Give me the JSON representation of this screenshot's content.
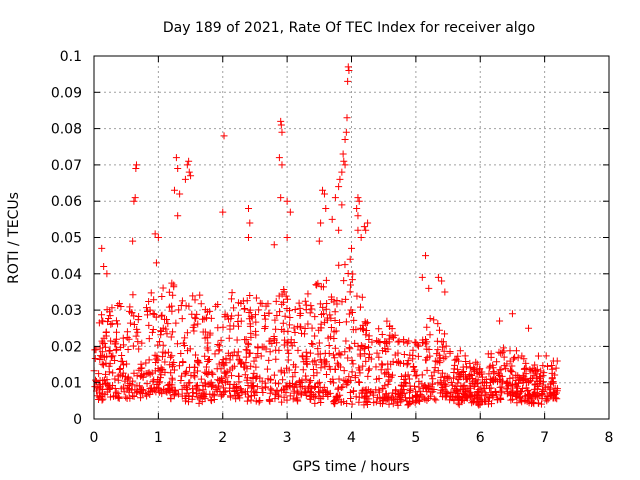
{
  "chart_data": {
    "type": "scatter",
    "title": "Day 189 of 2021, Rate Of TEC Index for receiver algo",
    "xlabel": "GPS time / hours",
    "ylabel": "ROTI / TECUs",
    "xlim": [
      0,
      8
    ],
    "ylim": [
      0,
      0.1
    ],
    "grid": true,
    "marker": "+",
    "color": "#ff0000",
    "x_ticks": [
      "0",
      "1",
      "2",
      "3",
      "4",
      "5",
      "6",
      "7",
      "8"
    ],
    "x_tick_values": [
      0,
      1,
      2,
      3,
      4,
      5,
      6,
      7,
      8
    ],
    "y_ticks": [
      "0",
      "0.01",
      "0.02",
      "0.03",
      "0.04",
      "0.05",
      "0.06",
      "0.07",
      "0.08",
      "0.09",
      "0.1"
    ],
    "y_tick_values": [
      0,
      0.01,
      0.02,
      0.03,
      0.04,
      0.05,
      0.06,
      0.07,
      0.08,
      0.09,
      0.1
    ],
    "data_extent_hours": [
      0,
      7.2
    ],
    "envelope": [
      {
        "t": 0.0,
        "base": 0.006,
        "peak": 0.027
      },
      {
        "t": 0.3,
        "base": 0.007,
        "peak": 0.032
      },
      {
        "t": 0.6,
        "base": 0.006,
        "peak": 0.035
      },
      {
        "t": 1.0,
        "base": 0.007,
        "peak": 0.036
      },
      {
        "t": 1.3,
        "base": 0.006,
        "peak": 0.038
      },
      {
        "t": 1.7,
        "base": 0.005,
        "peak": 0.033
      },
      {
        "t": 2.0,
        "base": 0.006,
        "peak": 0.034
      },
      {
        "t": 2.4,
        "base": 0.006,
        "peak": 0.033
      },
      {
        "t": 2.9,
        "base": 0.006,
        "peak": 0.036
      },
      {
        "t": 3.2,
        "base": 0.006,
        "peak": 0.034
      },
      {
        "t": 3.6,
        "base": 0.005,
        "peak": 0.04
      },
      {
        "t": 3.9,
        "base": 0.005,
        "peak": 0.045
      },
      {
        "t": 4.3,
        "base": 0.005,
        "peak": 0.032
      },
      {
        "t": 4.7,
        "base": 0.005,
        "peak": 0.024
      },
      {
        "t": 5.0,
        "base": 0.005,
        "peak": 0.022
      },
      {
        "t": 5.3,
        "base": 0.006,
        "peak": 0.03
      },
      {
        "t": 5.7,
        "base": 0.005,
        "peak": 0.018
      },
      {
        "t": 6.0,
        "base": 0.005,
        "peak": 0.014
      },
      {
        "t": 6.4,
        "base": 0.006,
        "peak": 0.022
      },
      {
        "t": 6.8,
        "base": 0.005,
        "peak": 0.016
      },
      {
        "t": 7.2,
        "base": 0.006,
        "peak": 0.016
      }
    ],
    "outliers": [
      {
        "x": 0.12,
        "y": 0.047
      },
      {
        "x": 0.15,
        "y": 0.042
      },
      {
        "x": 0.2,
        "y": 0.04
      },
      {
        "x": 0.6,
        "y": 0.049
      },
      {
        "x": 0.62,
        "y": 0.06
      },
      {
        "x": 0.64,
        "y": 0.061
      },
      {
        "x": 0.65,
        "y": 0.069
      },
      {
        "x": 0.66,
        "y": 0.07
      },
      {
        "x": 0.95,
        "y": 0.051
      },
      {
        "x": 1.0,
        "y": 0.05
      },
      {
        "x": 0.97,
        "y": 0.043
      },
      {
        "x": 1.25,
        "y": 0.063
      },
      {
        "x": 1.28,
        "y": 0.072
      },
      {
        "x": 1.3,
        "y": 0.069
      },
      {
        "x": 1.3,
        "y": 0.056
      },
      {
        "x": 1.33,
        "y": 0.062
      },
      {
        "x": 1.45,
        "y": 0.07
      },
      {
        "x": 1.47,
        "y": 0.071
      },
      {
        "x": 1.5,
        "y": 0.067
      },
      {
        "x": 1.48,
        "y": 0.068
      },
      {
        "x": 1.42,
        "y": 0.066
      },
      {
        "x": 2.02,
        "y": 0.078
      },
      {
        "x": 2.0,
        "y": 0.057
      },
      {
        "x": 2.4,
        "y": 0.058
      },
      {
        "x": 2.42,
        "y": 0.054
      },
      {
        "x": 2.4,
        "y": 0.05
      },
      {
        "x": 2.9,
        "y": 0.082
      },
      {
        "x": 2.91,
        "y": 0.081
      },
      {
        "x": 2.92,
        "y": 0.079
      },
      {
        "x": 2.88,
        "y": 0.072
      },
      {
        "x": 2.92,
        "y": 0.07
      },
      {
        "x": 2.9,
        "y": 0.061
      },
      {
        "x": 3.0,
        "y": 0.06
      },
      {
        "x": 3.05,
        "y": 0.057
      },
      {
        "x": 3.0,
        "y": 0.05
      },
      {
        "x": 2.8,
        "y": 0.048
      },
      {
        "x": 3.55,
        "y": 0.063
      },
      {
        "x": 3.58,
        "y": 0.062
      },
      {
        "x": 3.6,
        "y": 0.058
      },
      {
        "x": 3.52,
        "y": 0.054
      },
      {
        "x": 3.5,
        "y": 0.049
      },
      {
        "x": 3.7,
        "y": 0.055
      },
      {
        "x": 3.75,
        "y": 0.061
      },
      {
        "x": 3.8,
        "y": 0.064
      },
      {
        "x": 3.82,
        "y": 0.066
      },
      {
        "x": 3.85,
        "y": 0.068
      },
      {
        "x": 3.87,
        "y": 0.073
      },
      {
        "x": 3.88,
        "y": 0.071
      },
      {
        "x": 3.9,
        "y": 0.07
      },
      {
        "x": 3.9,
        "y": 0.077
      },
      {
        "x": 3.92,
        "y": 0.079
      },
      {
        "x": 3.93,
        "y": 0.083
      },
      {
        "x": 3.94,
        "y": 0.093
      },
      {
        "x": 3.95,
        "y": 0.097
      },
      {
        "x": 3.96,
        "y": 0.096
      },
      {
        "x": 3.85,
        "y": 0.059
      },
      {
        "x": 3.8,
        "y": 0.052
      },
      {
        "x": 4.1,
        "y": 0.061
      },
      {
        "x": 4.12,
        "y": 0.06
      },
      {
        "x": 4.1,
        "y": 0.056
      },
      {
        "x": 4.08,
        "y": 0.058
      },
      {
        "x": 4.1,
        "y": 0.052
      },
      {
        "x": 4.15,
        "y": 0.05
      },
      {
        "x": 4.2,
        "y": 0.053
      },
      {
        "x": 4.25,
        "y": 0.054
      },
      {
        "x": 4.22,
        "y": 0.052
      },
      {
        "x": 4.0,
        "y": 0.047
      },
      {
        "x": 3.98,
        "y": 0.044
      },
      {
        "x": 5.15,
        "y": 0.045
      },
      {
        "x": 5.1,
        "y": 0.039
      },
      {
        "x": 5.2,
        "y": 0.036
      },
      {
        "x": 5.35,
        "y": 0.039
      },
      {
        "x": 5.4,
        "y": 0.038
      },
      {
        "x": 5.45,
        "y": 0.035
      },
      {
        "x": 6.3,
        "y": 0.027
      },
      {
        "x": 6.5,
        "y": 0.029
      },
      {
        "x": 6.75,
        "y": 0.025
      }
    ],
    "scatter_density": 1700
  }
}
